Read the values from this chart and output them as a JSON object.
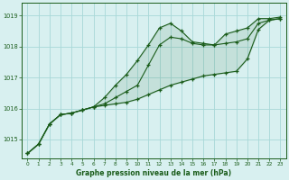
{
  "x": [
    0,
    1,
    2,
    3,
    4,
    5,
    6,
    7,
    8,
    9,
    10,
    11,
    12,
    13,
    14,
    15,
    16,
    17,
    18,
    19,
    20,
    21,
    22,
    23
  ],
  "line1_steady": [
    1014.55,
    1014.85,
    1015.5,
    1015.8,
    1015.85,
    1015.95,
    1016.05,
    1016.1,
    1016.15,
    1016.2,
    1016.3,
    1016.45,
    1016.6,
    1016.75,
    1016.85,
    1016.95,
    1017.05,
    1017.1,
    1017.15,
    1017.2,
    1017.6,
    1018.55,
    1018.85,
    1018.9
  ],
  "line2_mid": [
    1014.55,
    1014.85,
    1015.5,
    1015.8,
    1015.85,
    1015.95,
    1016.05,
    1016.15,
    1016.35,
    1016.55,
    1016.75,
    1017.4,
    1018.05,
    1018.3,
    1018.25,
    1018.1,
    1018.05,
    1018.05,
    1018.1,
    1018.15,
    1018.25,
    1018.75,
    1018.85,
    1018.9
  ],
  "line3_top": [
    1014.55,
    1014.85,
    1015.5,
    1015.8,
    1015.85,
    1015.95,
    1016.05,
    1016.35,
    1016.75,
    1017.1,
    1017.55,
    1018.05,
    1018.6,
    1018.75,
    1018.5,
    1018.15,
    1018.1,
    1018.05,
    1018.4,
    1018.5,
    1018.6,
    1018.9,
    1018.9,
    1018.95
  ],
  "bg_color": "#d8f0f0",
  "grid_color": "#a8d8d8",
  "line_color": "#1a5c1a",
  "xlabel": "Graphe pression niveau de la mer (hPa)",
  "ylim_min": 1014.4,
  "ylim_max": 1019.4,
  "yticks": [
    1015,
    1016,
    1017,
    1018,
    1019
  ],
  "xticks": [
    0,
    1,
    2,
    3,
    4,
    5,
    6,
    7,
    8,
    9,
    10,
    11,
    12,
    13,
    14,
    15,
    16,
    17,
    18,
    19,
    20,
    21,
    22,
    23
  ]
}
